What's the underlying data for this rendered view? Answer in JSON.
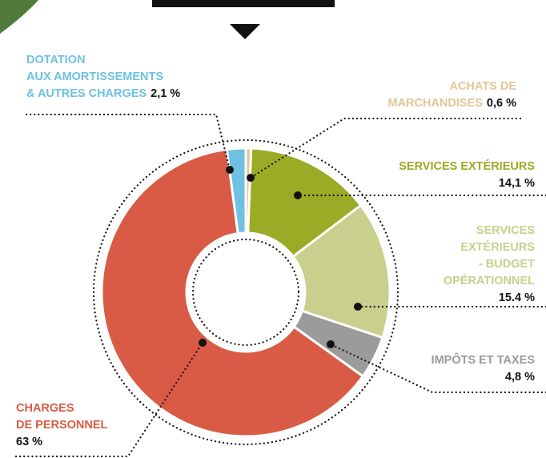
{
  "chart_data": {
    "type": "donut",
    "categories": [
      [
        "ACHATS DE",
        "MARCHANDISES"
      ],
      [
        "SERVICES EXTÉRIEURS"
      ],
      [
        "SERVICES",
        "EXTÉRIEURS",
        "- BUDGET",
        "OPÉRATIONNEL"
      ],
      [
        "IMPÔTS ET TAXES"
      ],
      [
        "CHARGES",
        "DE PERSONNEL"
      ],
      [
        "DOTATION",
        "AUX AMORTISSEMENTS",
        "& AUTRES CHARGES"
      ]
    ],
    "values": [
      0.6,
      14.1,
      15.4,
      4.8,
      63,
      2.1
    ],
    "value_labels": [
      "0,6 %",
      "14,1 %",
      "15.4 %",
      "4,8 %",
      "63 %",
      "2,1 %"
    ],
    "colors": [
      "#e3c597",
      "#9aab25",
      "#c9cf8c",
      "#9b9b9b",
      "#d95b45",
      "#6ec1e2"
    ]
  }
}
